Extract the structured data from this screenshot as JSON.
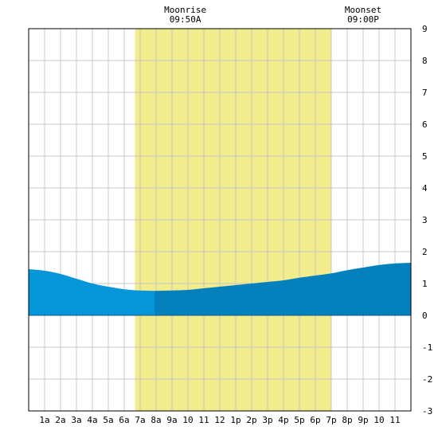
{
  "moon": {
    "rise_label": "Moonrise",
    "rise_time": "09:50A",
    "set_label": "Moonset",
    "set_time": "09:00P"
  },
  "colors": {
    "daylight": "#f2ec8c",
    "tide_light": "#0496d8",
    "tide_dark": "#0480bc",
    "grid": "#c8c8c8",
    "frame": "#000000",
    "background": "#ffffff"
  },
  "chart_data": {
    "type": "area",
    "title": "",
    "xlabel": "",
    "ylabel": "",
    "grid": true,
    "ylim": [
      -3,
      9
    ],
    "xlim": [
      0,
      24
    ],
    "x_ticks": [
      {
        "x": 1,
        "label": "1a"
      },
      {
        "x": 2,
        "label": "2a"
      },
      {
        "x": 3,
        "label": "3a"
      },
      {
        "x": 4,
        "label": "4a"
      },
      {
        "x": 5,
        "label": "5a"
      },
      {
        "x": 6,
        "label": "6a"
      },
      {
        "x": 7,
        "label": "7a"
      },
      {
        "x": 8,
        "label": "8a"
      },
      {
        "x": 9,
        "label": "9a"
      },
      {
        "x": 10,
        "label": "10"
      },
      {
        "x": 11,
        "label": "11"
      },
      {
        "x": 12,
        "label": "12"
      },
      {
        "x": 13,
        "label": "1p"
      },
      {
        "x": 14,
        "label": "2p"
      },
      {
        "x": 15,
        "label": "3p"
      },
      {
        "x": 16,
        "label": "4p"
      },
      {
        "x": 17,
        "label": "5p"
      },
      {
        "x": 18,
        "label": "6p"
      },
      {
        "x": 19,
        "label": "7p"
      },
      {
        "x": 20,
        "label": "8p"
      },
      {
        "x": 21,
        "label": "9p"
      },
      {
        "x": 22,
        "label": "10"
      },
      {
        "x": 23,
        "label": "11"
      }
    ],
    "y_ticks": [
      -3,
      -2,
      -1,
      0,
      1,
      2,
      3,
      4,
      5,
      6,
      7,
      8,
      9
    ],
    "daylight": {
      "start": 6.67,
      "end": 19.0
    },
    "moonrise_hour": 9.83,
    "moonset_hour": 21.0,
    "dark_from_hour": 7.9,
    "series": [
      {
        "x": [
          0,
          1,
          2,
          3,
          4,
          5,
          6,
          7,
          8,
          9,
          10,
          11,
          12,
          13,
          14,
          15,
          16,
          17,
          18,
          19,
          20,
          21,
          22,
          23,
          24
        ],
        "values": [
          1.45,
          1.4,
          1.3,
          1.15,
          1.0,
          0.9,
          0.82,
          0.78,
          0.77,
          0.78,
          0.8,
          0.85,
          0.9,
          0.95,
          1.0,
          1.05,
          1.1,
          1.18,
          1.25,
          1.32,
          1.42,
          1.5,
          1.58,
          1.63,
          1.65
        ]
      }
    ]
  }
}
